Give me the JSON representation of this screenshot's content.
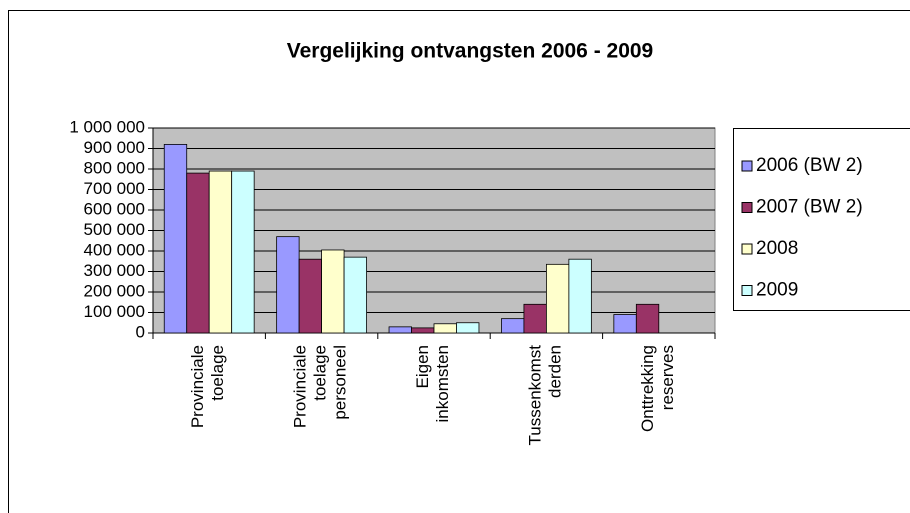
{
  "chart_data": {
    "type": "bar",
    "title": "Vergelijking ontvangsten 2006 - 2009",
    "categories": [
      "Provinciale toelage",
      "Provinciale toelage personeel",
      "Eigen inkomsten",
      "Tussenkomst derden",
      "Onttrekking reserves"
    ],
    "series": [
      {
        "name": "2006 (BW 2)",
        "color": "#9999ff",
        "values": [
          920000,
          470000,
          30000,
          70000,
          90000
        ]
      },
      {
        "name": "2007 (BW 2)",
        "color": "#993366",
        "values": [
          780000,
          360000,
          25000,
          140000,
          140000
        ]
      },
      {
        "name": "2008",
        "color": "#ffffcc",
        "values": [
          790000,
          405000,
          45000,
          335000,
          0
        ]
      },
      {
        "name": "2009",
        "color": "#ccffff",
        "values": [
          790000,
          370000,
          50000,
          360000,
          0
        ]
      }
    ],
    "ylim": [
      0,
      1000000
    ],
    "yticks": [
      0,
      {
        "value": 100000,
        "label": "100 000"
      },
      {
        "value": 200000,
        "label": "200 000"
      },
      {
        "value": 300000,
        "label": "300 000"
      },
      {
        "value": 400000,
        "label": "400 000"
      },
      {
        "value": 500000,
        "label": "500 000"
      },
      {
        "value": 600000,
        "label": "600 000"
      },
      {
        "value": 700000,
        "label": "700 000"
      },
      {
        "value": 800000,
        "label": "800 000"
      },
      {
        "value": 900000,
        "label": "900 000"
      },
      {
        "value": 1000000,
        "label": "1 000 000"
      }
    ],
    "grid": true,
    "plot_background": "#c0c0c0",
    "legend": "right"
  }
}
